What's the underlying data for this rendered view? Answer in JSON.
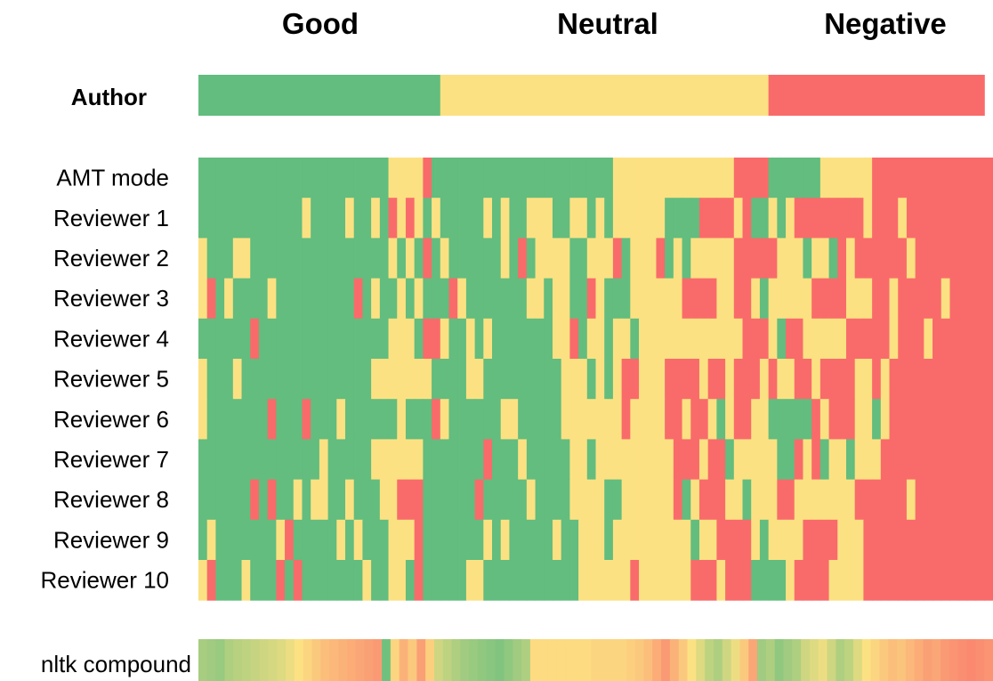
{
  "chart_data": {
    "type": "heatmap",
    "title": "",
    "xlabel": "",
    "ylabel": "",
    "column_headers": [
      "Good",
      "Neutral",
      "Negative"
    ],
    "legend": {
      "good": "#62BD7E",
      "neutral": "#FCE182",
      "negative": "#F96B6A"
    },
    "author": {
      "label": "Author",
      "segments": [
        {
          "label": "Good",
          "count": 28
        },
        {
          "label": "Neutral",
          "count": 38
        },
        {
          "label": "Negative",
          "count": 25
        }
      ]
    },
    "reviewer_labels": [
      "AMT mode",
      "Reviewer 1",
      "Reviewer 2",
      "Reviewer 3",
      "Reviewer 4",
      "Reviewer 5",
      "Reviewer 6",
      "Reviewer 7",
      "Reviewer 8",
      "Reviewer 9",
      "Reviewer 10"
    ],
    "reviewer_codes": [
      "GGGGGGGGGGGGGGGGGGGGGGNNNNRGGGGGGGGGGGGGGGGGGGGGNNNNNNNNNNNNNNRRRRGGGGGGNNNNNNRRRRRRRRRRRRRR",
      "GGGGGGGGGGGGNGGGGNGGNGRNRNGNGGGGGNGNGGNNNGGNNGNGNNNNNNGGGGRRRRNRGGNGNRRRRRRRRNRRRNRRRRRRRRRR",
      "NGGGNNGGGGGGGGGGGGGGGGNGNGRGNGGGGGGNGRGNNNNGGNNNRGNNNRGNGNNNNNRRRRRNNNGNNGRNRRRRRRNRRRRRRRRR",
      "NRGNGGGGNGGGGGGGGGRGNGGNGNGGGRNGGGGGGGNNGNNGGRNGGGNNNNNNRRRRNNRRNGNNNNNRRRRNNNRRNRRRRRNRRRRR",
      "GGGGGGRGGGGGGGGGGGGGGGNNNGRRNGGNGNGGGGGGGNNRGNNGNNGNNNNNNNNNNNNRRRNGRRNNNNNRRRRRNRRRNRRRRRRR",
      "NGGGNGGGGGGGGGGGGGGGNNNNNNNGGGGNNGGGGGGGGGNNNGNGNRRNNNRRRRNRRNRRRNRNNRRNRRRRNNRNRRRRRRRRRRRR",
      "NGGGGGGGRGGGRGGGNGGGGGGNGGGRNGGGGGGNNGGGGGNNNNNNNRNNNNRRNRRNGNRRNNGGGGGRNRRRNNGNRRRRRRRRRRRR",
      "GGGGGGGGGGGGGGNGGGGGNNNNNNGGGGGGGRGGGNGGGGGNNGNNNNNNNNNRRRNRRGNNNNNGGRNRGNNGNNNRRRRRRRRRRRRR",
      "GGGGGGRGRGGNGNNGGNGGGNNRRRGGGGGGRGGGGGNGGGGNNNNGGNNNNNNRGNRRRNNGNNNRRNNNNNNNRRRRRRNRRRRRRRRR",
      "GNGGGGGGGNRGGGGGNGNGGGNNNRGGGGGGGNGNGGGGGNGGNNNGNNNNNNNNNGNNRRRRNGNNNNRRRRNNNRRRRRRRRRRRRRRR",
      "NRGGGNGGGRGRGGGGGGGNGGNNGRGGGGGNNGGGGGGGGGGGNNNNNNRNNNNNNRRRNRRRGGGGNRRRRNNNNRRRRRRRRRRRRRRR"
    ],
    "nltk": {
      "label": "nltk compound",
      "values": [
        0.55,
        0.6,
        0.65,
        0.5,
        0.45,
        0.4,
        0.35,
        0.3,
        0.25,
        0.2,
        0.1,
        0.0,
        -0.1,
        -0.2,
        -0.3,
        -0.35,
        -0.4,
        -0.45,
        -0.5,
        -0.55,
        -0.6,
        0.9,
        -0.1,
        -0.4,
        -0.2,
        -0.55,
        -0.15,
        0.3,
        0.4,
        0.5,
        0.6,
        0.65,
        0.7,
        0.75,
        0.8,
        0.7,
        0.6,
        0.5,
        -0.05,
        -0.05,
        -0.05,
        -0.05,
        -0.05,
        -0.05,
        -0.05,
        -0.1,
        -0.1,
        -0.1,
        -0.1,
        -0.15,
        -0.2,
        -0.3,
        -0.45,
        -0.6,
        -0.4,
        -0.2,
        0.0,
        0.2,
        0.4,
        0.5,
        0.3,
        0.1,
        -0.2,
        -0.5,
        0.6,
        0.5,
        0.7,
        0.6,
        0.5,
        0.3,
        0.2,
        0.1,
        0.3,
        0.5,
        0.4,
        0.2,
        0.0,
        -0.1,
        -0.2,
        -0.3,
        -0.25,
        -0.35,
        -0.45,
        -0.55,
        -0.5,
        -0.6,
        -0.65,
        -0.7,
        -0.75,
        -0.7,
        -0.65
      ]
    }
  }
}
